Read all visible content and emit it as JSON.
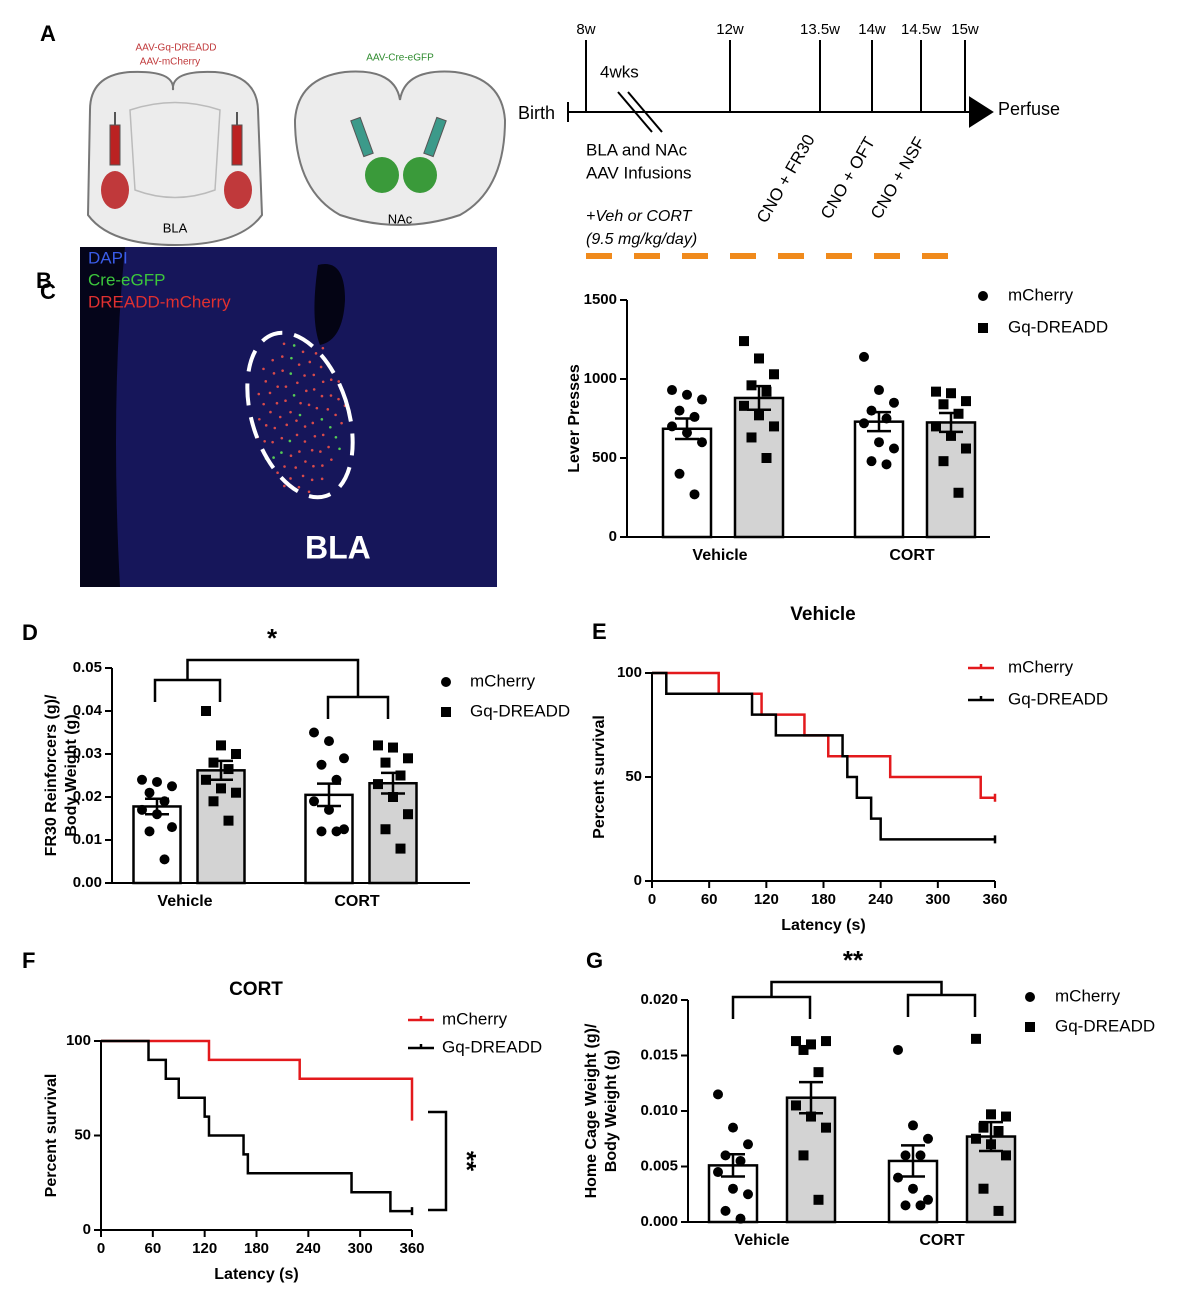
{
  "panels": {
    "a": {
      "label": "A",
      "virus_bla": [
        "AAV-Gq-DREADD",
        "AAV-mCherry"
      ],
      "virus_nac": "AAV-Cre-eGFP",
      "region_bla": "BLA",
      "region_nac": "NAc",
      "weeks": [
        "8w",
        "12w",
        "13.5w",
        "14w",
        "14.5w",
        "15w"
      ],
      "start": "Birth",
      "end": "Perfuse",
      "gap": "4wks",
      "infusion": [
        "BLA and NAc",
        "AAV Infusions"
      ],
      "tests": [
        "CNO + FR30",
        "CNO + OFT",
        "CNO + NSF"
      ],
      "treatment": [
        "+Veh or CORT",
        "(9.5 mg/kg/day)"
      ]
    },
    "b": {
      "label": "B",
      "channels": [
        "DAPI",
        "Cre-eGFP",
        "DREADD-mCherry"
      ],
      "region": "BLA"
    }
  },
  "chart_data": [
    {
      "type": "bar",
      "panel_label": "C",
      "ylabel": "Lever Presses",
      "categories": [
        "Vehicle",
        "CORT"
      ],
      "ylim": [
        0,
        1500
      ],
      "yticks": [
        0,
        500,
        1000,
        1500
      ],
      "series": [
        {
          "name": "mCherry",
          "color": "#ffffff",
          "marker": "circle",
          "values": [
            685,
            730
          ],
          "errors": [
            65,
            60
          ],
          "points": [
            [
              930,
              900,
              870,
              800,
              760,
              700,
              660,
              600,
              400,
              270
            ],
            [
              1140,
              930,
              850,
              800,
              750,
              720,
              600,
              560,
              480,
              460
            ]
          ]
        },
        {
          "name": "Gq-DREADD",
          "color": "#d3d3d3",
          "marker": "square",
          "values": [
            880,
            725
          ],
          "errors": [
            75,
            60
          ],
          "points": [
            [
              1240,
              1130,
              1030,
              960,
              920,
              830,
              770,
              700,
              630,
              500
            ],
            [
              920,
              910,
              860,
              840,
              780,
              700,
              640,
              560,
              480,
              280
            ]
          ]
        }
      ]
    },
    {
      "type": "bar",
      "panel_label": "D",
      "ylabel": [
        "FR30 Reinforcers (g)/",
        "Body Weight (g)"
      ],
      "categories": [
        "Vehicle",
        "CORT"
      ],
      "ylim": [
        0,
        0.05
      ],
      "yticks": [
        {
          "value": 0,
          "label": "0.00"
        },
        0.01,
        0.02,
        0.03,
        0.04,
        0.05
      ],
      "significance": "*",
      "series": [
        {
          "name": "mCherry",
          "color": "#ffffff",
          "marker": "circle",
          "values": [
            0.0178,
            0.0205
          ],
          "errors": [
            0.0018,
            0.0026
          ],
          "points": [
            [
              0.024,
              0.0235,
              0.0225,
              0.021,
              0.019,
              0.017,
              0.016,
              0.013,
              0.012,
              0.0055
            ],
            [
              0.035,
              0.033,
              0.029,
              0.0275,
              0.024,
              0.019,
              0.017,
              0.0125,
              0.012,
              0.012
            ]
          ]
        },
        {
          "name": "Gq-DREADD",
          "color": "#d3d3d3",
          "marker": "square",
          "values": [
            0.0262,
            0.0232
          ],
          "errors": [
            0.0022,
            0.0024
          ],
          "points": [
            [
              0.04,
              0.032,
              0.03,
              0.028,
              0.0265,
              0.024,
              0.022,
              0.021,
              0.019,
              0.0145
            ],
            [
              0.032,
              0.0315,
              0.029,
              0.028,
              0.025,
              0.023,
              0.02,
              0.016,
              0.0125,
              0.008
            ]
          ]
        }
      ]
    },
    {
      "type": "survival",
      "panel_label": "E",
      "title": "Vehicle",
      "xlabel": "Latency (s)",
      "ylabel": "Percent survival",
      "xlim": [
        0,
        360
      ],
      "xticks": [
        0,
        60,
        120,
        180,
        240,
        300,
        360
      ],
      "ylim": [
        0,
        100
      ],
      "yticks": [
        0,
        50,
        100
      ],
      "series": [
        {
          "name": "mCherry",
          "color": "#e3191c",
          "x": [
            0,
            70,
            115,
            160,
            185,
            250,
            345,
            360
          ],
          "values": [
            100,
            90,
            80,
            70,
            60,
            50,
            40,
            40
          ]
        },
        {
          "name": "Gq-DREADD",
          "color": "#000000",
          "x": [
            0,
            15,
            105,
            130,
            200,
            205,
            215,
            230,
            240,
            360
          ],
          "values": [
            100,
            90,
            80,
            70,
            60,
            50,
            40,
            30,
            20,
            20
          ]
        }
      ]
    },
    {
      "type": "survival",
      "panel_label": "F",
      "title": "CORT",
      "xlabel": "Latency (s)",
      "ylabel": "Percent survival",
      "xlim": [
        0,
        360
      ],
      "xticks": [
        0,
        60,
        120,
        180,
        240,
        300,
        360
      ],
      "ylim": [
        0,
        100
      ],
      "yticks": [
        0,
        50,
        100
      ],
      "significance": "**",
      "series": [
        {
          "name": "mCherry",
          "color": "#e3191c",
          "x": [
            0,
            125,
            230,
            360
          ],
          "values": [
            100,
            90,
            80,
            60
          ]
        },
        {
          "name": "Gq-DREADD",
          "color": "#000000",
          "x": [
            0,
            55,
            75,
            90,
            120,
            125,
            165,
            170,
            290,
            335,
            360
          ],
          "values": [
            100,
            90,
            80,
            70,
            60,
            50,
            40,
            30,
            20,
            10,
            10
          ]
        }
      ]
    },
    {
      "type": "bar",
      "panel_label": "G",
      "ylabel": [
        "Home Cage Weight (g)/",
        "Body Weight (g)"
      ],
      "categories": [
        "Vehicle",
        "CORT"
      ],
      "ylim": [
        0,
        0.02
      ],
      "yticks": [
        {
          "value": 0,
          "label": "0.000"
        },
        {
          "value": 0.005,
          "label": "0.005"
        },
        {
          "value": 0.01,
          "label": "0.010"
        },
        {
          "value": 0.015,
          "label": "0.015"
        },
        {
          "value": 0.02,
          "label": "0.020"
        }
      ],
      "significance": "**",
      "series": [
        {
          "name": "mCherry",
          "color": "#ffffff",
          "marker": "circle",
          "values": [
            0.0051,
            0.0055
          ],
          "errors": [
            0.001,
            0.0014
          ],
          "points": [
            [
              0.0115,
              0.0085,
              0.007,
              0.006,
              0.0055,
              0.0045,
              0.003,
              0.0025,
              0.001,
              0.0003
            ],
            [
              0.0155,
              0.0087,
              0.0075,
              0.006,
              0.006,
              0.004,
              0.003,
              0.002,
              0.0015,
              0.0015
            ]
          ]
        },
        {
          "name": "Gq-DREADD",
          "color": "#d3d3d3",
          "marker": "square",
          "values": [
            0.0112,
            0.0077
          ],
          "errors": [
            0.0014,
            0.0013
          ],
          "points": [
            [
              0.0163,
              0.016,
              0.0163,
              0.0155,
              0.0135,
              0.0105,
              0.0095,
              0.0085,
              0.006,
              0.002
            ],
            [
              0.0165,
              0.0097,
              0.0095,
              0.0085,
              0.0082,
              0.0075,
              0.007,
              0.006,
              0.003,
              0.001
            ]
          ]
        }
      ]
    }
  ]
}
